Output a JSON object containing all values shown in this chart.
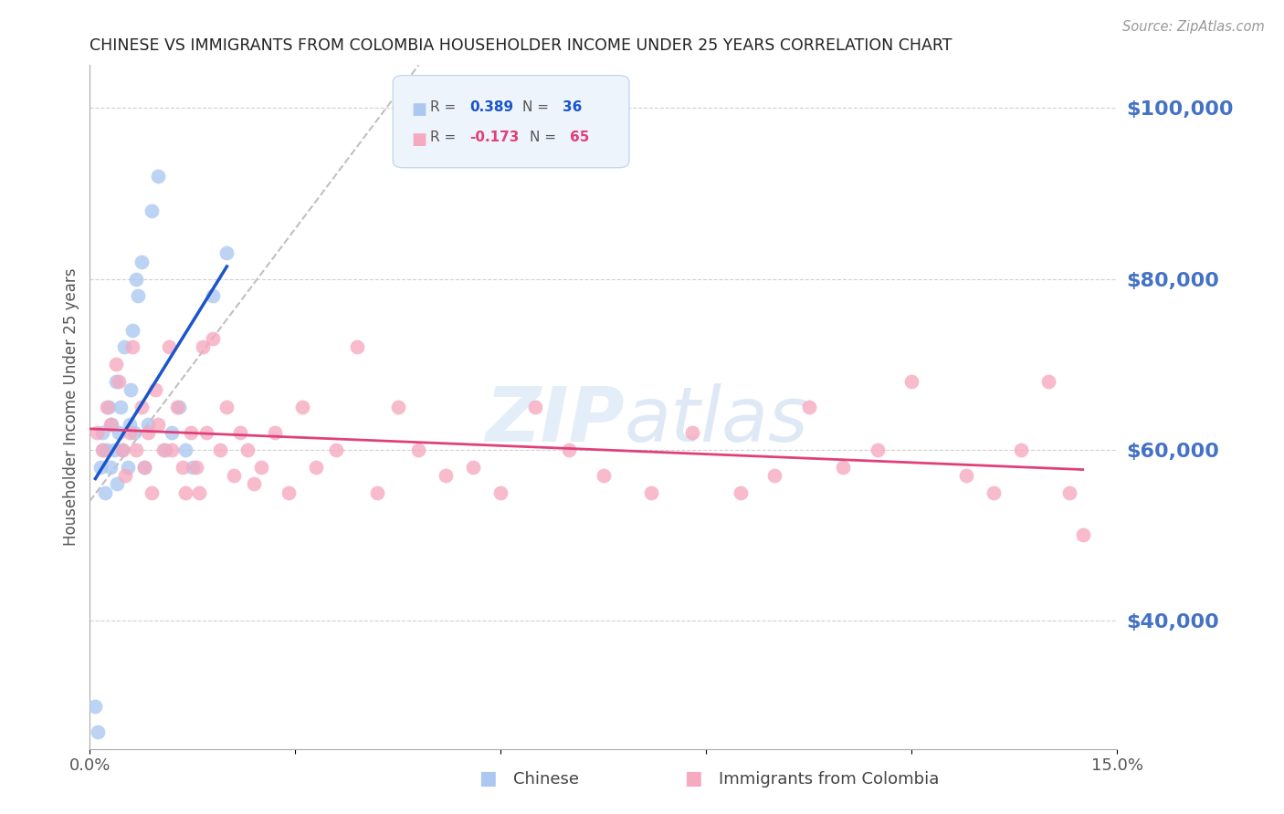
{
  "title": "CHINESE VS IMMIGRANTS FROM COLOMBIA HOUSEHOLDER INCOME UNDER 25 YEARS CORRELATION CHART",
  "source": "Source: ZipAtlas.com",
  "ylabel": "Householder Income Under 25 years",
  "xlim": [
    0.0,
    0.15
  ],
  "ylim": [
    25000,
    105000
  ],
  "yticks": [
    40000,
    60000,
    80000,
    100000
  ],
  "ytick_labels": [
    "$40,000",
    "$60,000",
    "$80,000",
    "$100,000"
  ],
  "xtick_positions": [
    0.0,
    0.03,
    0.06,
    0.09,
    0.12,
    0.15
  ],
  "xtick_labels": [
    "0.0%",
    "",
    "",
    "",
    "",
    "15.0%"
  ],
  "chinese_color": "#adc8f0",
  "colombia_color": "#f5aac0",
  "chinese_line_color": "#1a55cc",
  "colombia_line_color": "#e0407a",
  "chinese_R": 0.389,
  "chinese_N": 36,
  "colombia_R": -0.173,
  "colombia_N": 65,
  "background_color": "#ffffff",
  "grid_color": "#cccccc",
  "right_label_color": "#4472c4",
  "chinese_x": [
    0.0008,
    0.0012,
    0.0015,
    0.0018,
    0.002,
    0.0022,
    0.0025,
    0.0028,
    0.003,
    0.0032,
    0.0035,
    0.0038,
    0.004,
    0.0042,
    0.0045,
    0.0048,
    0.005,
    0.0055,
    0.0058,
    0.006,
    0.0062,
    0.0065,
    0.0068,
    0.007,
    0.0075,
    0.008,
    0.0085,
    0.009,
    0.01,
    0.011,
    0.012,
    0.013,
    0.014,
    0.015,
    0.018,
    0.02
  ],
  "chinese_y": [
    30000,
    27000,
    58000,
    62000,
    60000,
    55000,
    60000,
    65000,
    58000,
    63000,
    60000,
    68000,
    56000,
    62000,
    65000,
    60000,
    72000,
    58000,
    63000,
    67000,
    74000,
    62000,
    80000,
    78000,
    82000,
    58000,
    63000,
    88000,
    92000,
    60000,
    62000,
    65000,
    60000,
    58000,
    78000,
    83000
  ],
  "colombia_x": [
    0.001,
    0.0018,
    0.0025,
    0.003,
    0.0038,
    0.0042,
    0.0048,
    0.0052,
    0.0058,
    0.0062,
    0.0068,
    0.0075,
    0.008,
    0.0085,
    0.009,
    0.0095,
    0.01,
    0.0108,
    0.0115,
    0.012,
    0.0128,
    0.0135,
    0.014,
    0.0148,
    0.0155,
    0.016,
    0.0165,
    0.017,
    0.018,
    0.019,
    0.02,
    0.021,
    0.022,
    0.023,
    0.024,
    0.025,
    0.027,
    0.029,
    0.031,
    0.033,
    0.036,
    0.039,
    0.042,
    0.045,
    0.048,
    0.052,
    0.056,
    0.06,
    0.065,
    0.07,
    0.075,
    0.082,
    0.088,
    0.095,
    0.1,
    0.105,
    0.11,
    0.115,
    0.12,
    0.128,
    0.132,
    0.136,
    0.14,
    0.143,
    0.145
  ],
  "colombia_y": [
    62000,
    60000,
    65000,
    63000,
    70000,
    68000,
    60000,
    57000,
    62000,
    72000,
    60000,
    65000,
    58000,
    62000,
    55000,
    67000,
    63000,
    60000,
    72000,
    60000,
    65000,
    58000,
    55000,
    62000,
    58000,
    55000,
    72000,
    62000,
    73000,
    60000,
    65000,
    57000,
    62000,
    60000,
    56000,
    58000,
    62000,
    55000,
    65000,
    58000,
    60000,
    72000,
    55000,
    65000,
    60000,
    57000,
    58000,
    55000,
    65000,
    60000,
    57000,
    55000,
    62000,
    55000,
    57000,
    65000,
    58000,
    60000,
    68000,
    57000,
    55000,
    60000,
    68000,
    55000,
    50000
  ],
  "diag_line_x": [
    0.0,
    0.048
  ],
  "diag_line_y": [
    54000,
    105000
  ]
}
